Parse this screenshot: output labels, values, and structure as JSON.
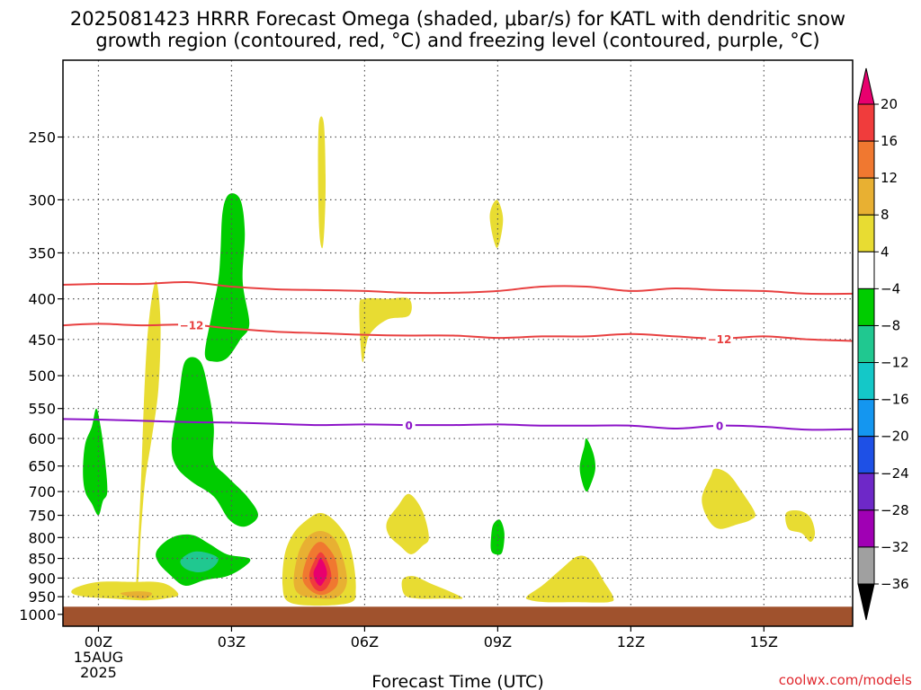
{
  "title": {
    "line1": "2025081423 HRRR Forecast Omega (shaded, μbar/s) for KATL with dendritic snow",
    "line2": "growth region (contoured, red, °C) and freezing level (contoured, purple, °C)"
  },
  "credit": "coolwx.com/models",
  "chart_data": {
    "type": "heatmap",
    "title": "2025081423 HRRR Forecast Omega (shaded, μbar/s) for KATL with dendritic snow growth region (contoured, red, °C) and freezing level (contoured, purple, °C)",
    "xlabel": "Forecast Time (UTC)",
    "ylabel": "",
    "xlim": [
      -0.8,
      17.0
    ],
    "ylim": [
      1035,
      200
    ],
    "x_ticks": [
      {
        "x": 0,
        "label": "00Z",
        "sub1": "15AUG",
        "sub2": "2025"
      },
      {
        "x": 3,
        "label": "03Z"
      },
      {
        "x": 6,
        "label": "06Z"
      },
      {
        "x": 9,
        "label": "09Z"
      },
      {
        "x": 12,
        "label": "12Z"
      },
      {
        "x": 15,
        "label": "15Z"
      }
    ],
    "y_ticks": [
      250,
      300,
      350,
      400,
      450,
      500,
      550,
      600,
      650,
      700,
      750,
      800,
      850,
      900,
      950,
      1000
    ],
    "colorbar": {
      "levels": [
        "20",
        "16",
        "12",
        "8",
        "4",
        "−4",
        "−8",
        "−12",
        "−16",
        "−20",
        "−24",
        "−28",
        "−32",
        "−36"
      ],
      "colors": [
        "#e8006e",
        "#f03c3c",
        "#f07830",
        "#e8b032",
        "#e8dc32",
        "#ffffff",
        "#00cc00",
        "#20c890",
        "#14c8c8",
        "#1496f0",
        "#1e50e6",
        "#6e28c8",
        "#a000b4",
        "#a0a0a0",
        "#000000"
      ]
    },
    "ground": {
      "p_top": 978,
      "color": "#a0522d"
    },
    "shaded_regions": [
      {
        "color": "#e8dc32",
        "points": [
          [
            0.85,
            920
          ],
          [
            0.95,
            700
          ],
          [
            1.05,
            500
          ],
          [
            1.15,
            420
          ],
          [
            1.3,
            380
          ],
          [
            1.4,
            430
          ],
          [
            1.35,
            520
          ],
          [
            1.2,
            600
          ],
          [
            1.05,
            680
          ],
          [
            0.95,
            800
          ],
          [
            0.9,
            900
          ]
        ]
      },
      {
        "color": "#e8dc32",
        "points": [
          [
            4.97,
            240
          ],
          [
            5.08,
            240
          ],
          [
            5.12,
            280
          ],
          [
            5.1,
            320
          ],
          [
            5.05,
            345
          ],
          [
            4.98,
            330
          ],
          [
            4.95,
            280
          ]
        ]
      },
      {
        "color": "#e8dc32",
        "points": [
          [
            8.82,
            315
          ],
          [
            8.98,
            300
          ],
          [
            9.12,
            318
          ],
          [
            8.98,
            345
          ]
        ]
      },
      {
        "color": "#e8dc32",
        "points": [
          [
            5.88,
            410
          ],
          [
            6.0,
            400
          ],
          [
            6.5,
            400
          ],
          [
            7.0,
            400
          ],
          [
            7.0,
            420
          ],
          [
            6.5,
            425
          ],
          [
            6.1,
            445
          ],
          [
            5.95,
            480
          ]
        ]
      },
      {
        "color": "#e8dc32",
        "points": [
          [
            -0.5,
            925
          ],
          [
            0.0,
            910
          ],
          [
            0.8,
            910
          ],
          [
            1.3,
            910
          ],
          [
            1.6,
            920
          ],
          [
            1.8,
            945
          ],
          [
            1.5,
            955
          ],
          [
            1.0,
            960
          ],
          [
            0.3,
            955
          ],
          [
            -0.3,
            950
          ],
          [
            -0.6,
            940
          ]
        ]
      },
      {
        "color": "#e8b032",
        "points": [
          [
            0.5,
            940
          ],
          [
            0.9,
            935
          ],
          [
            1.2,
            940
          ],
          [
            1.05,
            955
          ],
          [
            0.7,
            950
          ]
        ]
      },
      {
        "color": "#e8dc32",
        "points": [
          [
            4.15,
            920
          ],
          [
            4.2,
            840
          ],
          [
            4.4,
            790
          ],
          [
            4.7,
            760
          ],
          [
            5.0,
            745
          ],
          [
            5.3,
            760
          ],
          [
            5.6,
            800
          ],
          [
            5.75,
            860
          ],
          [
            5.8,
            930
          ],
          [
            5.7,
            965
          ],
          [
            5.0,
            975
          ],
          [
            4.3,
            965
          ]
        ]
      },
      {
        "color": "#e8b032",
        "points": [
          [
            4.4,
            910
          ],
          [
            4.5,
            840
          ],
          [
            4.7,
            800
          ],
          [
            5.0,
            785
          ],
          [
            5.3,
            800
          ],
          [
            5.5,
            845
          ],
          [
            5.6,
            910
          ],
          [
            5.4,
            950
          ],
          [
            5.0,
            955
          ],
          [
            4.55,
            945
          ]
        ]
      },
      {
        "color": "#f07830",
        "points": [
          [
            4.6,
            900
          ],
          [
            4.7,
            850
          ],
          [
            4.85,
            820
          ],
          [
            5.0,
            810
          ],
          [
            5.15,
            820
          ],
          [
            5.35,
            855
          ],
          [
            5.4,
            910
          ],
          [
            5.25,
            935
          ],
          [
            5.0,
            945
          ],
          [
            4.75,
            930
          ]
        ]
      },
      {
        "color": "#f03c3c",
        "points": [
          [
            4.75,
            895
          ],
          [
            4.85,
            860
          ],
          [
            5.0,
            835
          ],
          [
            5.15,
            855
          ],
          [
            5.25,
            895
          ],
          [
            5.15,
            925
          ],
          [
            5.0,
            935
          ],
          [
            4.85,
            925
          ]
        ]
      },
      {
        "color": "#e8006e",
        "points": [
          [
            4.85,
            885
          ],
          [
            4.93,
            865
          ],
          [
            5.0,
            850
          ],
          [
            5.1,
            865
          ],
          [
            5.15,
            890
          ],
          [
            5.05,
            915
          ],
          [
            4.98,
            920
          ],
          [
            4.88,
            905
          ]
        ]
      },
      {
        "color": "#e8dc32",
        "points": [
          [
            6.5,
            765
          ],
          [
            6.75,
            730
          ],
          [
            7.0,
            705
          ],
          [
            7.3,
            740
          ],
          [
            7.45,
            800
          ],
          [
            7.3,
            820
          ],
          [
            7.05,
            840
          ],
          [
            6.8,
            820
          ],
          [
            6.55,
            795
          ]
        ]
      },
      {
        "color": "#e8dc32",
        "points": [
          [
            6.85,
            905
          ],
          [
            7.1,
            895
          ],
          [
            7.5,
            915
          ],
          [
            8.0,
            940
          ],
          [
            8.2,
            955
          ],
          [
            7.8,
            955
          ],
          [
            7.2,
            955
          ],
          [
            6.9,
            945
          ]
        ]
      },
      {
        "color": "#e8dc32",
        "points": [
          [
            9.65,
            950
          ],
          [
            10.0,
            920
          ],
          [
            10.4,
            880
          ],
          [
            10.8,
            845
          ],
          [
            11.1,
            855
          ],
          [
            11.4,
            910
          ],
          [
            11.6,
            950
          ],
          [
            11.5,
            965
          ],
          [
            10.7,
            965
          ],
          [
            10.1,
            965
          ],
          [
            9.75,
            960
          ]
        ]
      },
      {
        "color": "#e8dc32",
        "points": [
          [
            13.6,
            715
          ],
          [
            13.8,
            670
          ],
          [
            13.9,
            655
          ],
          [
            14.2,
            665
          ],
          [
            14.5,
            700
          ],
          [
            14.8,
            745
          ],
          [
            14.7,
            760
          ],
          [
            14.4,
            770
          ],
          [
            14.0,
            780
          ],
          [
            13.75,
            760
          ]
        ]
      },
      {
        "color": "#e8dc32",
        "points": [
          [
            15.5,
            745
          ],
          [
            15.8,
            740
          ],
          [
            16.05,
            755
          ],
          [
            16.15,
            790
          ],
          [
            16.05,
            810
          ],
          [
            15.85,
            790
          ],
          [
            15.55,
            780
          ]
        ]
      },
      {
        "color": "#00cc00",
        "points": [
          [
            -0.35,
            660
          ],
          [
            -0.3,
            610
          ],
          [
            -0.15,
            580
          ],
          [
            -0.05,
            550
          ],
          [
            0.05,
            580
          ],
          [
            0.15,
            640
          ],
          [
            0.2,
            700
          ],
          [
            0.1,
            720
          ],
          [
            0.0,
            750
          ],
          [
            -0.15,
            725
          ],
          [
            -0.3,
            700
          ]
        ]
      },
      {
        "color": "#00cc00",
        "points": [
          [
            1.3,
            835
          ],
          [
            1.5,
            810
          ],
          [
            1.8,
            795
          ],
          [
            2.15,
            795
          ],
          [
            2.5,
            815
          ],
          [
            2.9,
            840
          ],
          [
            3.4,
            850
          ],
          [
            3.3,
            870
          ],
          [
            2.9,
            895
          ],
          [
            2.4,
            905
          ],
          [
            1.95,
            920
          ],
          [
            1.6,
            890
          ],
          [
            1.35,
            860
          ]
        ]
      },
      {
        "color": "#20c890",
        "points": [
          [
            1.85,
            855
          ],
          [
            2.1,
            835
          ],
          [
            2.4,
            835
          ],
          [
            2.7,
            850
          ],
          [
            2.55,
            875
          ],
          [
            2.25,
            885
          ],
          [
            1.95,
            875
          ]
        ]
      },
      {
        "color": "#00cc00",
        "points": [
          [
            1.65,
            610
          ],
          [
            1.8,
            540
          ],
          [
            1.95,
            480
          ],
          [
            2.3,
            480
          ],
          [
            2.5,
            530
          ],
          [
            2.6,
            580
          ],
          [
            2.6,
            640
          ],
          [
            2.9,
            670
          ],
          [
            3.35,
            710
          ],
          [
            3.6,
            750
          ],
          [
            3.3,
            775
          ],
          [
            2.95,
            760
          ],
          [
            2.6,
            710
          ],
          [
            2.1,
            680
          ],
          [
            1.75,
            650
          ]
        ]
      },
      {
        "color": "#00cc00",
        "points": [
          [
            2.4,
            470
          ],
          [
            2.55,
            420
          ],
          [
            2.7,
            380
          ],
          [
            2.75,
            350
          ],
          [
            2.8,
            310
          ],
          [
            2.95,
            295
          ],
          [
            3.2,
            300
          ],
          [
            3.3,
            330
          ],
          [
            3.25,
            380
          ],
          [
            3.4,
            430
          ],
          [
            3.2,
            450
          ],
          [
            2.9,
            475
          ],
          [
            2.6,
            480
          ]
        ]
      },
      {
        "color": "#00cc00",
        "points": [
          [
            10.85,
            650
          ],
          [
            10.95,
            615
          ],
          [
            11.0,
            600
          ],
          [
            11.15,
            625
          ],
          [
            11.2,
            655
          ],
          [
            11.1,
            685
          ],
          [
            11.0,
            700
          ],
          [
            10.9,
            680
          ]
        ]
      },
      {
        "color": "#00cc00",
        "points": [
          [
            8.85,
            800
          ],
          [
            8.9,
            770
          ],
          [
            9.05,
            760
          ],
          [
            9.15,
            790
          ],
          [
            9.1,
            835
          ],
          [
            8.95,
            840
          ],
          [
            8.85,
            830
          ]
        ]
      }
    ],
    "contours": [
      {
        "name": "-12",
        "color": "#e84040",
        "label_at": [],
        "points": [
          [
            -0.8,
            384
          ],
          [
            0,
            383
          ],
          [
            1,
            383
          ],
          [
            2,
            381
          ],
          [
            3,
            386
          ],
          [
            4,
            389
          ],
          [
            5,
            390
          ],
          [
            6,
            391
          ],
          [
            7,
            393
          ],
          [
            8,
            393
          ],
          [
            9,
            391
          ],
          [
            10,
            386
          ],
          [
            11,
            386
          ],
          [
            12,
            391
          ],
          [
            13,
            388
          ],
          [
            14,
            390
          ],
          [
            15,
            391
          ],
          [
            16,
            394
          ],
          [
            17,
            394
          ]
        ]
      },
      {
        "name": "-12",
        "color": "#e84040",
        "label_at": [
          2.1,
          14.0
        ],
        "points": [
          [
            -0.8,
            432
          ],
          [
            0,
            430
          ],
          [
            1,
            432
          ],
          [
            2,
            431
          ],
          [
            3,
            436
          ],
          [
            4,
            440
          ],
          [
            5,
            442
          ],
          [
            6,
            444
          ],
          [
            7,
            445
          ],
          [
            8,
            445
          ],
          [
            9,
            448
          ],
          [
            10,
            446
          ],
          [
            11,
            446
          ],
          [
            12,
            443
          ],
          [
            13,
            446
          ],
          [
            14,
            449
          ],
          [
            15,
            446
          ],
          [
            16,
            450
          ],
          [
            17,
            452
          ]
        ]
      },
      {
        "name": "0",
        "color": "#8c14c8",
        "label_at": [
          7.0,
          14.0
        ],
        "points": [
          [
            -0.8,
            567
          ],
          [
            0,
            568
          ],
          [
            1,
            570
          ],
          [
            2,
            572
          ],
          [
            3,
            573
          ],
          [
            4,
            575
          ],
          [
            5,
            577
          ],
          [
            6,
            576
          ],
          [
            7,
            577
          ],
          [
            8,
            577
          ],
          [
            9,
            576
          ],
          [
            10,
            578
          ],
          [
            11,
            578
          ],
          [
            12,
            578
          ],
          [
            13,
            583
          ],
          [
            14,
            578
          ],
          [
            15,
            580
          ],
          [
            16,
            585
          ],
          [
            17,
            584
          ]
        ]
      }
    ]
  }
}
